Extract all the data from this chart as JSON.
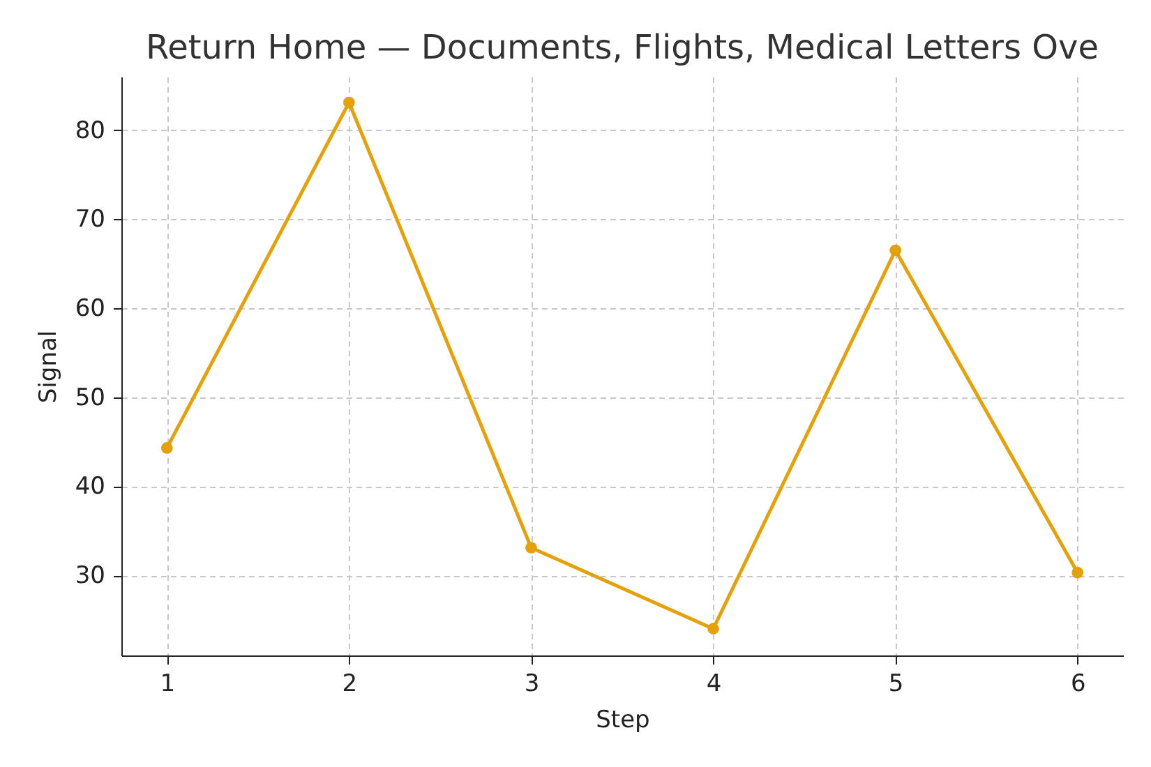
{
  "chart_data": {
    "type": "line",
    "title": "Return Home — Documents, Flights, Medical Letters Ove",
    "xlabel": "Step",
    "ylabel": "Signal",
    "x": [
      1,
      2,
      3,
      4,
      5,
      6
    ],
    "series": [
      {
        "color": "#e3a10e",
        "values": [
          44.3,
          83.1,
          33.1,
          24.0,
          66.5,
          30.3
        ]
      }
    ],
    "xlim": [
      0.75,
      6.25
    ],
    "xticks": [
      1,
      2,
      3,
      4,
      5,
      6
    ],
    "ylim": [
      21,
      86
    ],
    "yticks": [
      30,
      40,
      50,
      60,
      70,
      80
    ],
    "grid": true,
    "marker": "circle",
    "line_style": "solid"
  }
}
